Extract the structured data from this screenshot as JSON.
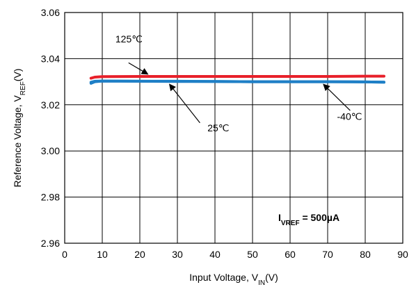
{
  "chart_data": {
    "type": "line",
    "xlabel_main": "Input Voltage, V",
    "xlabel_sub": "IN",
    "xlabel_tail": "(V)",
    "ylabel_main": "Reference Voltage, V",
    "ylabel_sub": "REF",
    "ylabel_tail": "(V)",
    "xlim": [
      0,
      90
    ],
    "ylim": [
      2.96,
      3.06
    ],
    "xticks": [
      "0",
      "10",
      "20",
      "30",
      "40",
      "50",
      "60",
      "70",
      "80",
      "90"
    ],
    "yticks": [
      "2.96",
      "2.98",
      "3.00",
      "3.02",
      "3.04",
      "3.06"
    ],
    "grid": true,
    "series": [
      {
        "name": "125℃",
        "color": "#e8202a",
        "x": [
          7,
          8,
          10,
          20,
          30,
          40,
          50,
          60,
          70,
          80,
          85
        ],
        "y": [
          3.0315,
          3.032,
          3.0322,
          3.0323,
          3.0323,
          3.0323,
          3.0323,
          3.0323,
          3.0323,
          3.0324,
          3.0324
        ]
      },
      {
        "name": "25℃",
        "color": "#1e7fc6",
        "x": [
          7,
          8,
          10,
          20,
          30,
          40,
          50,
          60,
          70,
          80,
          85
        ],
        "y": [
          3.0293,
          3.03,
          3.0303,
          3.0302,
          3.0301,
          3.0301,
          3.03,
          3.03,
          3.03,
          3.0299,
          3.0298
        ]
      },
      {
        "name": "-40℃",
        "color": "#1e7fc6",
        "x": [
          7,
          8,
          10,
          20,
          30,
          40,
          50,
          60,
          70,
          80,
          85
        ],
        "y": [
          3.0298,
          3.0302,
          3.0303,
          3.0302,
          3.0302,
          3.0301,
          3.03,
          3.03,
          3.03,
          3.0299,
          3.0298
        ]
      }
    ],
    "annotations": [
      {
        "label": "125℃",
        "text_x": 13.5,
        "text_y": 3.047,
        "arrow_from": [
          17,
          3.0382
        ],
        "arrow_to": [
          22,
          3.0334
        ]
      },
      {
        "label": "25℃",
        "text_x": 38,
        "text_y": 3.0085,
        "arrow_from": [
          36,
          3.0122
        ],
        "arrow_to": [
          28,
          3.0287
        ]
      },
      {
        "label": "-40℃",
        "text_x": 72.5,
        "text_y": 3.0135,
        "arrow_from": [
          76,
          3.0175
        ],
        "arrow_to": [
          69,
          3.0287
        ]
      }
    ],
    "condition": {
      "main": "I",
      "sub": "VREF",
      "tail": " = 500µA"
    }
  }
}
